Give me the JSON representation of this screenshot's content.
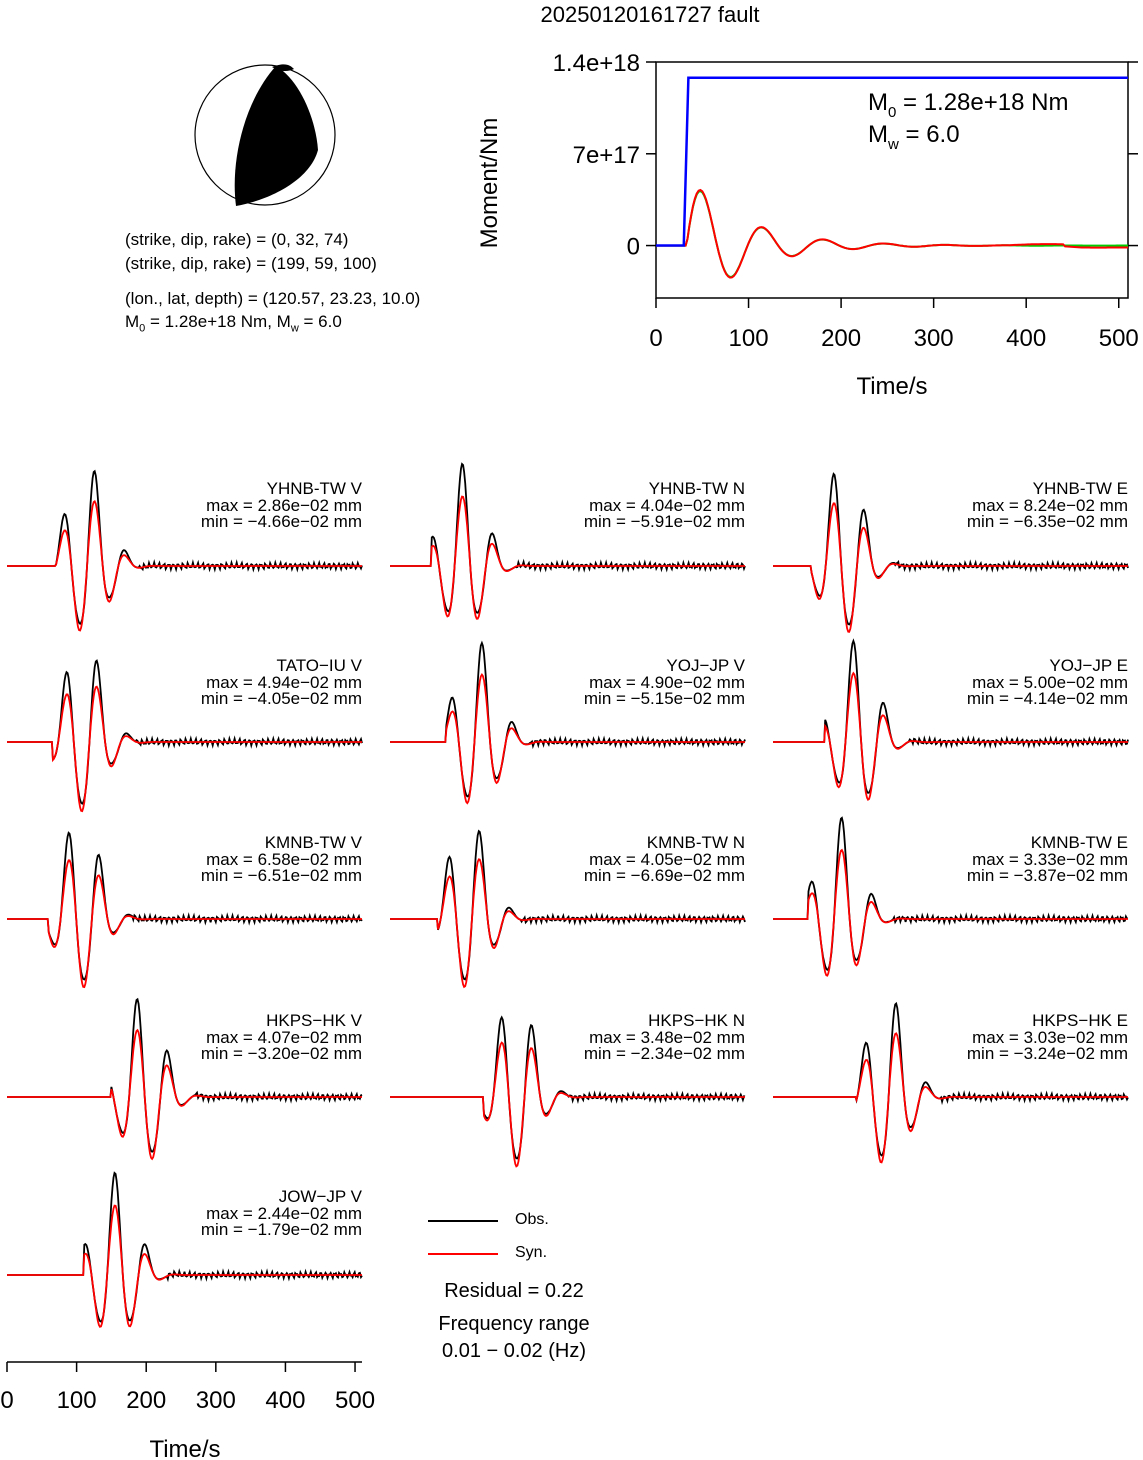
{
  "title": "20250120161727 fault",
  "fault_info": {
    "plane1": "(strike, dip, rake) = (0, 32, 74)",
    "plane2": "(strike, dip, rake) = (199, 59, 100)",
    "location": "(lon., lat, depth) = (120.57, 23.23, 10.0)",
    "m0_symbol": "M",
    "m0_sub": "0",
    "m0_text": " = 1.28e+18 Nm, M",
    "mw_sub": "w",
    "mw_text": " = 6.0"
  },
  "moment_plot": {
    "ylabel": "Moment/Nm",
    "xlabel": "Time/s",
    "yticks": [
      "0",
      "7e+17",
      "1.4e+18"
    ],
    "xticks": [
      "0",
      "100",
      "200",
      "300",
      "400",
      "500"
    ],
    "annot_m0": " = 1.28e+18 Nm",
    "annot_mw": " = 6.0",
    "annot_m_symbol": "M",
    "annot_m0_sub": "0",
    "annot_mw_sub": "w"
  },
  "chart_data": {
    "type": "line",
    "moment_function": {
      "x_range": [
        0,
        510
      ],
      "y_range": [
        -4e+17,
        1.4e+18
      ],
      "cumulative_moment": {
        "onset_s": 30,
        "rise_end_s": 35,
        "final_Nm": 1.28e+18,
        "color": "#0000ff"
      },
      "green_curve_color": "#00cc00",
      "red_curve_color": "#ff0000"
    },
    "waveforms": {
      "x_range_s": [
        0,
        510
      ],
      "obs_color": "#000000",
      "syn_color": "#ff0000",
      "stations": [
        {
          "station": "YHNB-TW V",
          "max": "max = 2.86e−02 mm",
          "min": "min = −4.66e−02 mm"
        },
        {
          "station": "YHNB-TW N",
          "max": "max = 4.04e−02 mm",
          "min": "min = −5.91e−02 mm"
        },
        {
          "station": "YHNB-TW E",
          "max": "max = 8.24e−02 mm",
          "min": "min = −6.35e−02 mm"
        },
        {
          "station": "TATO−IU V",
          "max": "max = 4.94e−02 mm",
          "min": "min = −4.05e−02 mm"
        },
        {
          "station": "YOJ−JP V",
          "max": "max = 4.90e−02 mm",
          "min": "min = −5.15e−02 mm"
        },
        {
          "station": "YOJ−JP E",
          "max": "max = 5.00e−02 mm",
          "min": "min = −4.14e−02 mm"
        },
        {
          "station": "KMNB-TW V",
          "max": "max = 6.58e−02 mm",
          "min": "min = −6.51e−02 mm"
        },
        {
          "station": "KMNB-TW N",
          "max": "max = 4.05e−02 mm",
          "min": "min = −6.69e−02 mm"
        },
        {
          "station": "KMNB-TW E",
          "max": "max = 3.33e−02 mm",
          "min": "min = −3.87e−02 mm"
        },
        {
          "station": "HKPS−HK V",
          "max": "max = 4.07e−02 mm",
          "min": "min = −3.20e−02 mm"
        },
        {
          "station": "HKPS−HK N",
          "max": "max = 3.48e−02 mm",
          "min": "min = −2.34e−02 mm"
        },
        {
          "station": "HKPS−HK E",
          "max": "max = 3.03e−02 mm",
          "min": "min = −3.24e−02 mm"
        },
        {
          "station": "JOW−JP V",
          "max": "max = 2.44e−02 mm",
          "min": "min = −1.79e−02 mm"
        }
      ]
    },
    "bottom_axis": {
      "xlabel": "Time/s",
      "xticks": [
        "0",
        "100",
        "200",
        "300",
        "400",
        "500"
      ]
    }
  },
  "legend": {
    "obs": "Obs.",
    "syn": "Syn.",
    "residual": "Residual = 0.22",
    "freq_title": "Frequency range",
    "freq_value": "0.01 − 0.02 (Hz)"
  }
}
